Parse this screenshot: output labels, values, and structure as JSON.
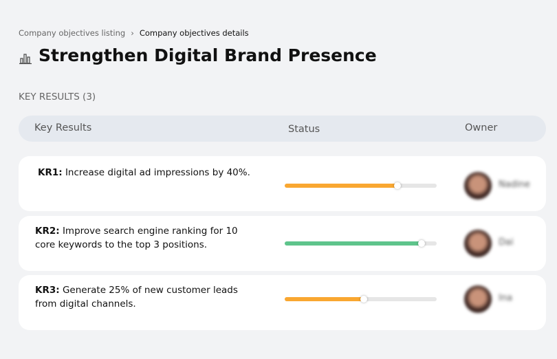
{
  "breadcrumb": {
    "items": [
      "Company objectives listing",
      "Company objectives details"
    ]
  },
  "header": {
    "title": "Strengthen Digital Brand Presence"
  },
  "section": {
    "title": "KEY RESULTS (3)"
  },
  "table": {
    "columns": [
      "Key Results",
      "Status",
      "Owner"
    ],
    "rows": [
      {
        "label": "KR1:",
        "text": "Increase digital ad impressions by 40%.",
        "progress": 74,
        "color": "#f9a731",
        "owner": "Nadine"
      },
      {
        "label": "KR2:",
        "text": "Improve search engine ranking for 10 core keywords to the top 3 positions.",
        "progress": 90,
        "color": "#5ec48b",
        "owner": "Dai"
      },
      {
        "label": "KR3:",
        "text": "Generate 25% of new customer leads from digital channels.",
        "progress": 52,
        "color": "#f9a731",
        "owner": "Ina"
      }
    ]
  }
}
